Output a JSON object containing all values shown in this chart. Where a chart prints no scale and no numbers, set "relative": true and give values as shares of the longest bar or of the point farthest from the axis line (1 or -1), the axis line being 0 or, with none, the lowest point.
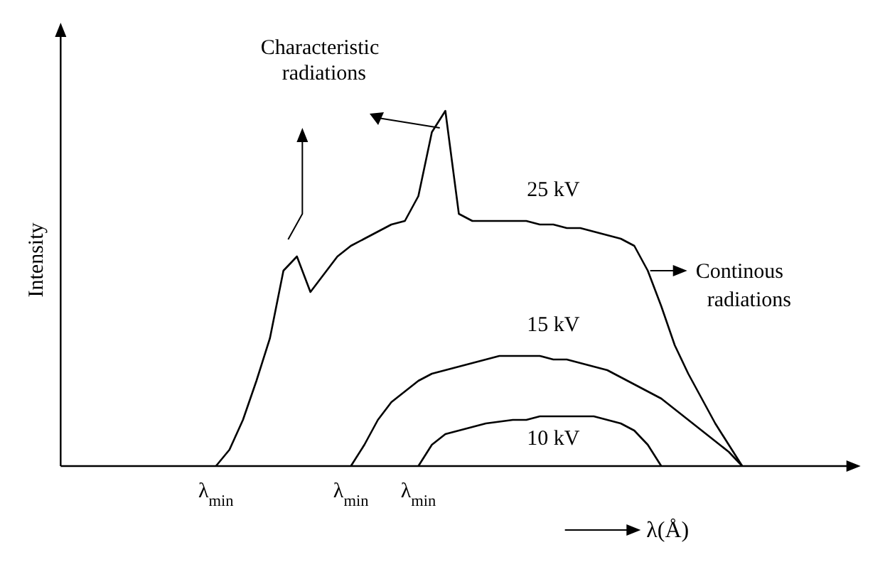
{
  "chart_data": {
    "type": "line",
    "relative": true,
    "ylabel": "Intensity",
    "xlabel": "λ(Å)",
    "categories": [
      null,
      null,
      null,
      null,
      null,
      null,
      null,
      null,
      null,
      null,
      null,
      null,
      "λ$_{min}$",
      null,
      null,
      null,
      null,
      null,
      null,
      null,
      null,
      null,
      "λ$_{min}$",
      null,
      null,
      null,
      null,
      "λ$_{min}$",
      null,
      null,
      null,
      null,
      null,
      null,
      null,
      null,
      null,
      null,
      null,
      null,
      null,
      null,
      null,
      null,
      null,
      null,
      null,
      null,
      null,
      null,
      null,
      null,
      null,
      null,
      null,
      null,
      null,
      null,
      null,
      null
    ],
    "series": [
      {
        "name": "25 kV",
        "color": "#000000",
        "values": [
          null,
          null,
          null,
          null,
          null,
          null,
          null,
          null,
          null,
          null,
          null,
          null,
          0,
          0.046,
          0.13,
          0.24,
          0.36,
          0.55,
          0.59,
          0.49,
          0.54,
          0.59,
          0.62,
          0.64,
          0.66,
          0.68,
          0.69,
          0.76,
          0.94,
          1,
          0.71,
          0.69,
          0.69,
          0.69,
          0.69,
          0.69,
          0.68,
          0.68,
          0.67,
          0.67,
          0.66,
          0.65,
          0.64,
          0.62,
          0.55,
          0.45,
          0.34,
          0.26,
          0.19,
          0.12,
          0.06,
          0,
          null,
          null,
          null,
          null,
          null,
          null,
          null,
          null
        ]
      },
      {
        "name": "15 kV",
        "color": "#000000",
        "values": [
          null,
          null,
          null,
          null,
          null,
          null,
          null,
          null,
          null,
          null,
          null,
          null,
          null,
          null,
          null,
          null,
          null,
          null,
          null,
          null,
          null,
          null,
          0,
          0.06,
          0.13,
          0.18,
          0.21,
          0.24,
          0.26,
          0.27,
          0.28,
          0.29,
          0.3,
          0.31,
          0.31,
          0.31,
          0.31,
          0.3,
          0.3,
          0.29,
          0.28,
          0.27,
          0.25,
          0.23,
          0.21,
          0.19,
          0.16,
          0.13,
          0.1,
          0.07,
          0.04,
          0,
          null,
          null,
          null,
          null,
          null,
          null,
          null,
          null
        ]
      },
      {
        "name": "10 kV",
        "color": "#000000",
        "values": [
          null,
          null,
          null,
          null,
          null,
          null,
          null,
          null,
          null,
          null,
          null,
          null,
          null,
          null,
          null,
          null,
          null,
          null,
          null,
          null,
          null,
          null,
          null,
          null,
          null,
          null,
          null,
          0,
          0.06,
          0.09,
          0.1,
          0.11,
          0.12,
          0.125,
          0.13,
          0.13,
          0.14,
          0.14,
          0.14,
          0.14,
          0.14,
          0.13,
          0.12,
          0.1,
          0.06,
          0,
          null,
          null,
          null,
          null,
          null,
          null,
          null,
          null,
          null,
          null,
          null,
          null,
          null,
          null
        ]
      }
    ],
    "annotations": [
      "Characteristic radiations",
      "Continous radiations"
    ],
    "marker": "none"
  }
}
